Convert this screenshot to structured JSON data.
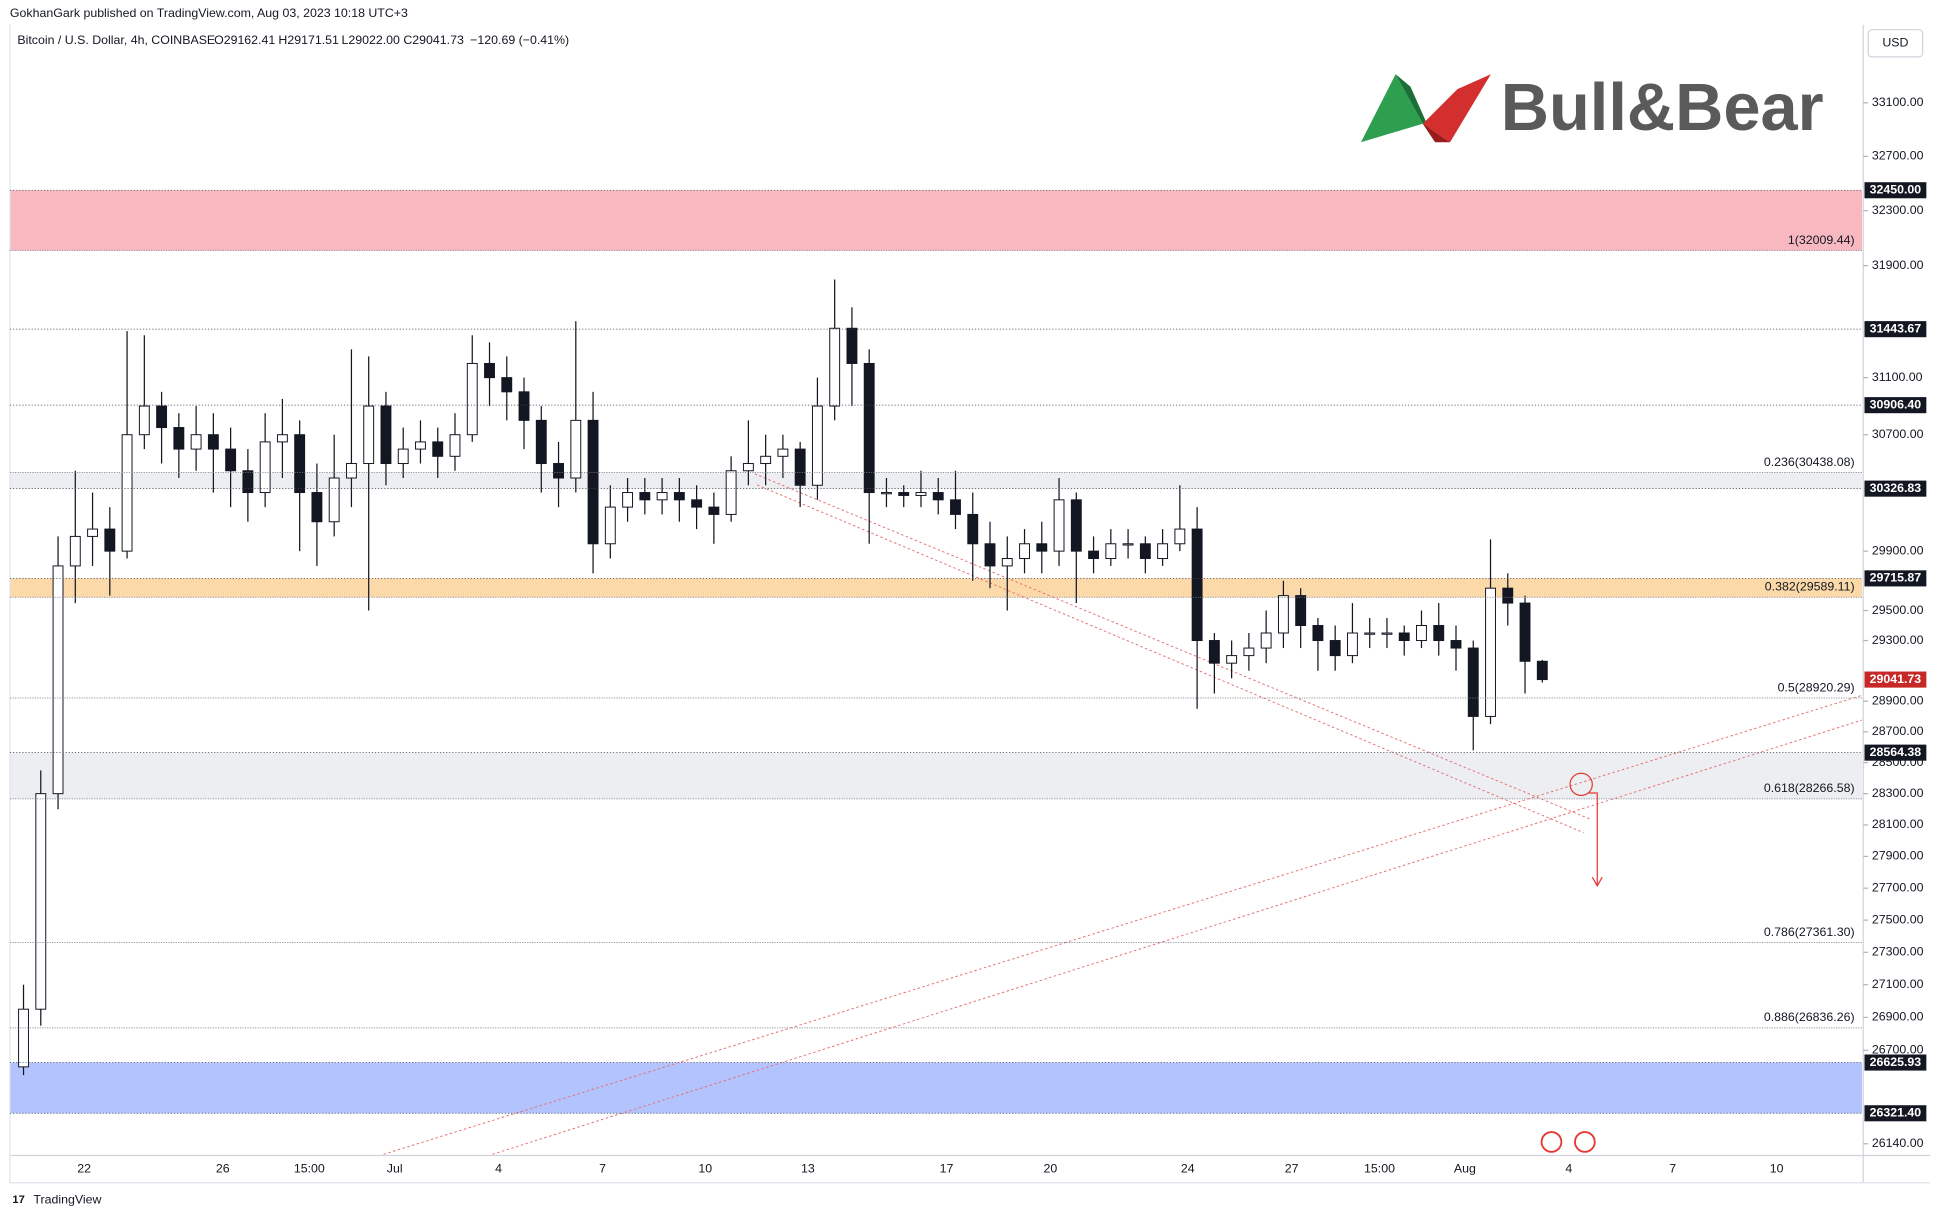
{
  "chart_data": {
    "type": "candlestick",
    "publisher": "GokhanGark published on TradingView.com, Aug 03, 2023 10:18 UTC+3",
    "title": "Bitcoin / U.S. Dollar, 4h, COINBASE",
    "ohlc_labels": [
      "O29162.41",
      "H29171.51",
      "L29022.00",
      "C29041.73"
    ],
    "change_label": "−120.69 (−0.41%)",
    "logo_text": "Bull&Bear",
    "currency": "USD",
    "footer": "TradingView",
    "log_scale": true,
    "grid": false,
    "ylim": [
      26085,
      33691
    ],
    "yticks": [
      {
        "value": 33100,
        "label": "33100.00"
      },
      {
        "value": 32700,
        "label": "32700.00"
      },
      {
        "value": 32300,
        "label": "32300.00"
      },
      {
        "value": 31900,
        "label": "31900.00"
      },
      {
        "value": 31100,
        "label": "31100.00"
      },
      {
        "value": 30700,
        "label": "30700.00"
      },
      {
        "value": 29900,
        "label": "29900.00"
      },
      {
        "value": 29500,
        "label": "29500.00"
      },
      {
        "value": 29300,
        "label": "29300.00"
      },
      {
        "value": 28900,
        "label": "28900.00"
      },
      {
        "value": 28700,
        "label": "28700.00"
      },
      {
        "value": 28500,
        "label": "28500.00"
      },
      {
        "value": 28300,
        "label": "28300.00"
      },
      {
        "value": 28100,
        "label": "28100.00"
      },
      {
        "value": 27900,
        "label": "27900.00"
      },
      {
        "value": 27700,
        "label": "27700.00"
      },
      {
        "value": 27500,
        "label": "27500.00"
      },
      {
        "value": 27300,
        "label": "27300.00"
      },
      {
        "value": 27100,
        "label": "27100.00"
      },
      {
        "value": 26900,
        "label": "26900.00"
      },
      {
        "value": 26700,
        "label": "26700.00"
      },
      {
        "value": 26140,
        "label": "26140.00"
      }
    ],
    "xticks": [
      "22",
      "26",
      "15:00",
      "Jul",
      "4",
      "7",
      "10",
      "13",
      "17",
      "20",
      "24",
      "27",
      "15:00",
      "Aug",
      "4",
      "7",
      "10"
    ],
    "up_color": "#ffffff",
    "down_color": "#131722",
    "candles": {
      "open": [
        26600,
        26950,
        28300,
        29800,
        30000,
        30050,
        29900,
        30700,
        30900,
        30750,
        30600,
        30700,
        30600,
        30450,
        30300,
        30650,
        30700,
        30300,
        30100,
        30400,
        30500,
        30900,
        30500,
        30600,
        30650,
        30550,
        30700,
        31200,
        31100,
        31000,
        30800,
        30500,
        30400,
        30800,
        29950,
        30200,
        30300,
        30250,
        30300,
        30250,
        30200,
        30150,
        30450,
        30500,
        30550,
        30600,
        30350,
        30900,
        31450,
        31200,
        30300,
        30300,
        30280,
        30300,
        30250,
        30150,
        29950,
        29800,
        29850,
        29950,
        29900,
        30250,
        29900,
        29850,
        29950,
        29950,
        29850,
        29950,
        30050,
        29300,
        29150,
        29200,
        29250,
        29350,
        29600,
        29400,
        29300,
        29200,
        29350,
        29350,
        29350,
        29300,
        29400,
        29300,
        29250,
        28800,
        29650,
        29550,
        29162.41
      ],
      "high": [
        27100,
        28450,
        30000,
        30450,
        30300,
        30200,
        31430,
        31400,
        31000,
        30850,
        30900,
        30850,
        30750,
        30600,
        30850,
        30950,
        30800,
        30500,
        30700,
        31300,
        31250,
        31000,
        30750,
        30800,
        30750,
        30850,
        31400,
        31350,
        31250,
        31100,
        30900,
        30650,
        31500,
        31000,
        30350,
        30400,
        30400,
        30400,
        30400,
        30350,
        30300,
        30550,
        30800,
        30700,
        30700,
        30650,
        31100,
        31800,
        31600,
        31300,
        30400,
        30350,
        30450,
        30400,
        30450,
        30300,
        30100,
        30000,
        30050,
        30100,
        30400,
        30300,
        30000,
        30050,
        30050,
        30000,
        30050,
        30350,
        30200,
        29350,
        29300,
        29350,
        29500,
        29700,
        29650,
        29450,
        29400,
        29550,
        29450,
        29450,
        29400,
        29500,
        29550,
        29400,
        29300,
        29980,
        29750,
        29600,
        29171.51
      ],
      "low": [
        26550,
        26850,
        28200,
        29550,
        29800,
        29600,
        29850,
        30600,
        30500,
        30400,
        30450,
        30300,
        30200,
        30100,
        30200,
        30400,
        29900,
        29800,
        30000,
        30200,
        29500,
        30350,
        30400,
        30500,
        30400,
        30450,
        30650,
        30900,
        30800,
        30600,
        30300,
        30200,
        30300,
        29750,
        29850,
        30100,
        30150,
        30150,
        30100,
        30050,
        29950,
        30100,
        30350,
        30350,
        30400,
        30200,
        30250,
        30800,
        30900,
        29950,
        30200,
        30200,
        30200,
        30150,
        30050,
        29700,
        29650,
        29500,
        29750,
        29750,
        29800,
        29550,
        29750,
        29800,
        29850,
        29750,
        29800,
        29900,
        28850,
        28950,
        29050,
        29100,
        29150,
        29250,
        29250,
        29100,
        29100,
        29150,
        29250,
        29250,
        29200,
        29250,
        29200,
        29100,
        28580,
        28750,
        29400,
        28950,
        29022
      ],
      "close": [
        26950,
        28300,
        29800,
        30000,
        30050,
        29900,
        30700,
        30900,
        30750,
        30600,
        30700,
        30600,
        30450,
        30300,
        30650,
        30700,
        30300,
        30100,
        30400,
        30500,
        30900,
        30500,
        30600,
        30650,
        30550,
        30700,
        31200,
        31100,
        31000,
        30800,
        30500,
        30400,
        30800,
        29950,
        30200,
        30300,
        30250,
        30300,
        30250,
        30200,
        30150,
        30450,
        30500,
        30550,
        30600,
        30350,
        30900,
        31450,
        31200,
        30300,
        30300,
        30280,
        30300,
        30250,
        30150,
        29950,
        29800,
        29850,
        29950,
        29900,
        30250,
        29900,
        29850,
        29950,
        29950,
        29850,
        29950,
        30050,
        29300,
        29150,
        29200,
        29250,
        29350,
        29600,
        29400,
        29300,
        29200,
        29350,
        29350,
        29350,
        29300,
        29400,
        29300,
        29250,
        28800,
        29650,
        29550,
        29162.41,
        29041.73
      ]
    },
    "levels": [
      {
        "value": 32450,
        "label": "32450.00"
      },
      {
        "value": 31443.67,
        "label": "31443.67"
      },
      {
        "value": 30906.4,
        "label": "30906.40"
      },
      {
        "value": 30326.83,
        "label": "30326.83"
      },
      {
        "value": 29715.87,
        "label": "29715.87"
      },
      {
        "value": 28564.38,
        "label": "28564.38"
      },
      {
        "value": 26625.93,
        "label": "26625.93"
      },
      {
        "value": 26321.4,
        "label": "26321.40"
      }
    ],
    "fib": [
      {
        "value": 32009.44,
        "label": "1(32009.44)"
      },
      {
        "value": 30438.08,
        "label": "0.236(30438.08)"
      },
      {
        "value": 29589.11,
        "label": "0.382(29589.11)"
      },
      {
        "value": 28920.29,
        "label": "0.5(28920.29)"
      },
      {
        "value": 28266.58,
        "label": "0.618(28266.58)"
      },
      {
        "value": 27361.3,
        "label": "0.786(27361.30)"
      },
      {
        "value": 26836.26,
        "label": "0.886(26836.26)"
      }
    ],
    "zones": [
      {
        "from": 32450,
        "to": 32009.44,
        "color": "#f8b8c0"
      },
      {
        "from": 30438.08,
        "to": 30326.83,
        "color": "#eceef2"
      },
      {
        "from": 29715.87,
        "to": 29589.11,
        "color": "#fcd9a8"
      },
      {
        "from": 28564.38,
        "to": 28266.58,
        "color": "#eceef2"
      },
      {
        "from": 26625.93,
        "to": 26321.4,
        "color": "#b3c3fd"
      }
    ],
    "last_price": {
      "value": 29041.73,
      "label": "29041.73",
      "color": "#c62828"
    }
  }
}
